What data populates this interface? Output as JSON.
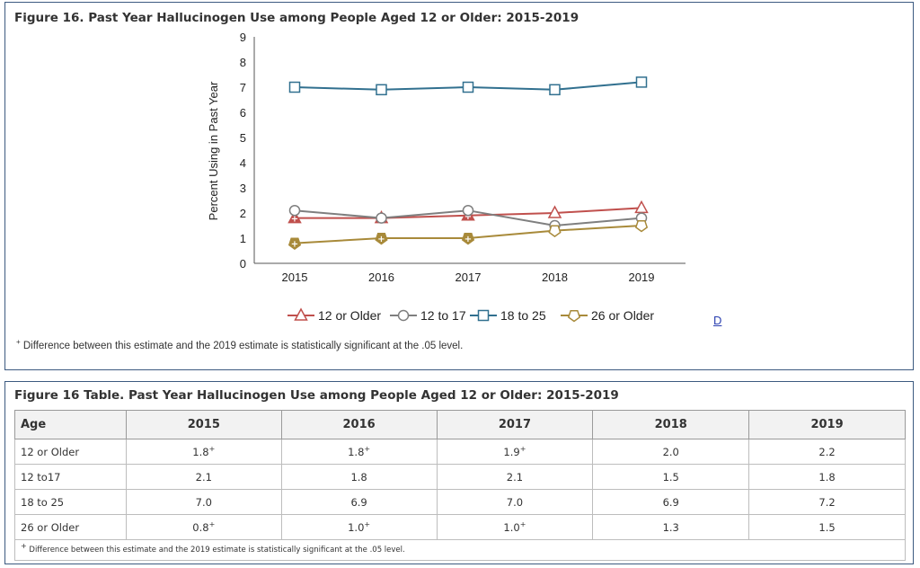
{
  "figure": {
    "title": "Figure 16. Past Year Hallucinogen Use among People Aged 12 or Older: 2015-2019",
    "footnote_mark": "+",
    "footnote_text": " Difference between this estimate and the 2019 estimate is statistically significant at the .05 level.",
    "d_link": "D"
  },
  "chart_data": {
    "type": "line",
    "title": "Figure 16. Past Year Hallucinogen Use among People Aged 12 or Older: 2015-2019",
    "ylabel": "Percent Using in Past Year",
    "xlabel": "",
    "x": [
      "2015",
      "2016",
      "2017",
      "2018",
      "2019"
    ],
    "ylim": [
      0,
      9
    ],
    "yticks": [
      0,
      1,
      2,
      3,
      4,
      5,
      6,
      7,
      8,
      9
    ],
    "legend_position": "bottom",
    "series": [
      {
        "name": "12 or Older",
        "values": [
          1.8,
          1.8,
          1.9,
          2.0,
          2.2
        ],
        "significant": [
          true,
          true,
          true,
          false,
          false
        ],
        "color": "#c0504d",
        "marker": "triangle"
      },
      {
        "name": "12 to 17",
        "values": [
          2.1,
          1.8,
          2.1,
          1.5,
          1.8
        ],
        "significant": [
          false,
          false,
          false,
          false,
          false
        ],
        "color": "#7f7f7f",
        "marker": "circle"
      },
      {
        "name": "18 to 25",
        "values": [
          7.0,
          6.9,
          7.0,
          6.9,
          7.2
        ],
        "significant": [
          false,
          false,
          false,
          false,
          false
        ],
        "color": "#31708f",
        "marker": "square"
      },
      {
        "name": "26 or Older",
        "values": [
          0.8,
          1.0,
          1.0,
          1.3,
          1.5
        ],
        "significant": [
          true,
          true,
          true,
          false,
          false
        ],
        "color": "#a88a3a",
        "marker": "pentagon"
      }
    ]
  },
  "table": {
    "title": "Figure 16 Table. Past Year Hallucinogen Use among People Aged 12 or Older: 2015-2019",
    "headers": [
      "Age",
      "2015",
      "2016",
      "2017",
      "2018",
      "2019"
    ],
    "rows": [
      [
        "12 or Older",
        "1.8",
        "1.8",
        "1.9",
        "2.0",
        "2.2"
      ],
      [
        "12 to17",
        "2.1",
        "1.8",
        "2.1",
        "1.5",
        "1.8"
      ],
      [
        "18 to 25",
        "7.0",
        "6.9",
        "7.0",
        "6.9",
        "7.2"
      ],
      [
        "26 or Older",
        "0.8",
        "1.0",
        "1.0",
        "1.3",
        "1.5"
      ]
    ],
    "significance_mark": "+",
    "footnote_mark": "+",
    "footnote_text": " Difference between this estimate and the 2019 estimate is statistically significant at the .05 level."
  }
}
